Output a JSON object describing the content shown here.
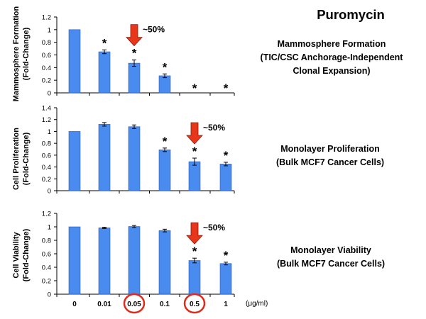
{
  "figure": {
    "title": "Puromycin",
    "x_unit": "(μg/ml)",
    "highlighted_x": [
      "0.05",
      "0.5"
    ]
  },
  "panels": [
    {
      "ylabel_line1": "Mammosphere Formation",
      "ylabel_line2": "(Fold-Change)",
      "desc_lines": [
        "Mammosphere Formation",
        "(TIC/CSC Anchorage-Independent",
        "Clonal Expansion)"
      ],
      "arrow_label": "~50%"
    },
    {
      "ylabel_line1": "Cell Proliferation",
      "ylabel_line2": "(Fold-Change)",
      "desc_lines": [
        "Monolayer Proliferation",
        "(Bulk MCF7 Cancer Cells)"
      ],
      "arrow_label": "~50%"
    },
    {
      "ylabel_line1": "Cell Viability",
      "ylabel_line2": "(Fold-Change)",
      "desc_lines": [
        "Monolayer Viability",
        "(Bulk MCF7 Cancer Cells)"
      ],
      "arrow_label": "~50%"
    }
  ],
  "colors": {
    "bar": "#4A8BF0",
    "bar_edge": "#2A5BB0",
    "arrow": "#E8361A",
    "circle": "#E02A1E"
  },
  "chart_data": [
    {
      "type": "bar",
      "title": "Mammosphere Formation",
      "xlabel": "",
      "ylabel": "Mammosphere Formation (Fold-Change)",
      "categories": [
        "0",
        "0.01",
        "0.05",
        "0.1",
        "0.5",
        "1"
      ],
      "values": [
        1.0,
        0.65,
        0.47,
        0.27,
        0.0,
        0.0
      ],
      "error": [
        0,
        0.03,
        0.05,
        0.03,
        0,
        0
      ],
      "significant": [
        false,
        true,
        true,
        true,
        true,
        true
      ],
      "ylim": [
        0,
        1.2
      ],
      "yticks": [
        0,
        0.2,
        0.4,
        0.6,
        0.8,
        1,
        1.2
      ],
      "arrow_at": "0.05"
    },
    {
      "type": "bar",
      "title": "Monolayer Proliferation",
      "xlabel": "",
      "ylabel": "Cell Proliferation (Fold-Change)",
      "categories": [
        "0",
        "0.01",
        "0.05",
        "0.1",
        "0.5",
        "1"
      ],
      "values": [
        1.0,
        1.12,
        1.08,
        0.69,
        0.49,
        0.45
      ],
      "error": [
        0,
        0.03,
        0.03,
        0.03,
        0.06,
        0.03
      ],
      "significant": [
        false,
        false,
        false,
        true,
        true,
        true
      ],
      "ylim": [
        0,
        1.4
      ],
      "yticks": [
        0,
        0.2,
        0.4,
        0.6,
        0.8,
        1,
        1.2,
        1.4
      ],
      "arrow_at": "0.5"
    },
    {
      "type": "bar",
      "title": "Monolayer Viability",
      "xlabel": "(μg/ml)",
      "ylabel": "Cell Viability (Fold-Change)",
      "categories": [
        "0",
        "0.01",
        "0.05",
        "0.1",
        "0.5",
        "1"
      ],
      "values": [
        1.0,
        0.985,
        1.005,
        0.945,
        0.5,
        0.455
      ],
      "error": [
        0,
        0.01,
        0.015,
        0.02,
        0.035,
        0.02
      ],
      "significant": [
        false,
        false,
        false,
        false,
        true,
        true
      ],
      "ylim": [
        0,
        1.2
      ],
      "yticks": [
        0,
        0.2,
        0.4,
        0.6,
        0.8,
        1,
        1.2
      ],
      "arrow_at": "0.5"
    }
  ]
}
